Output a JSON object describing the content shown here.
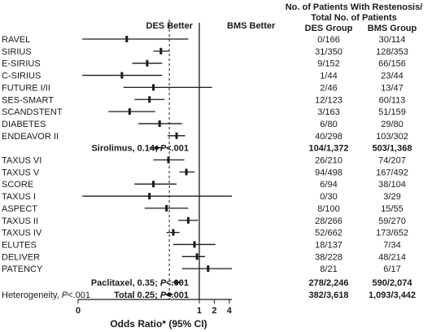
{
  "chart_data": {
    "type": "forest",
    "header": {
      "line1": "No. of Patients With Restenosis/",
      "line2": "Total No. of Patients",
      "des_group": "DES Group",
      "bms_group": "BMS Group"
    },
    "des_better": "DES Better",
    "bms_better": "BMS Better",
    "xlabel": "Odds Ratio* (95% CI)",
    "x_scale": "log",
    "xlim": [
      0.0037,
      4.5
    ],
    "reference_value": 1,
    "pooled_reference_value": 0.25,
    "x_ticks": [
      {
        "value": 0.0037,
        "label": "0"
      },
      {
        "value": 1,
        "label": "1"
      },
      {
        "value": 2,
        "label": "2"
      },
      {
        "value": 4,
        "label": "4"
      }
    ],
    "studies": [
      {
        "name": "RAVEL",
        "des": "0/166",
        "bms": "30/114",
        "or": 0.035,
        "lo": 0.0045,
        "hi": 0.6
      },
      {
        "name": "SIRIUS",
        "des": "31/350",
        "bms": "128/353",
        "or": 0.17,
        "lo": 0.12,
        "hi": 0.25
      },
      {
        "name": "E-SIRIUS",
        "des": "9/152",
        "bms": "66/156",
        "or": 0.09,
        "lo": 0.045,
        "hi": 0.18
      },
      {
        "name": "C-SIRIUS",
        "des": "1/44",
        "bms": "23/44",
        "or": 0.028,
        "lo": 0.0045,
        "hi": 0.18
      },
      {
        "name": "FUTURE I/II",
        "des": "2/46",
        "bms": "13/47",
        "or": 0.12,
        "lo": 0.03,
        "hi": 1.8
      },
      {
        "name": "SES-SMART",
        "des": "12/123",
        "bms": "60/113",
        "or": 0.1,
        "lo": 0.05,
        "hi": 0.2
      },
      {
        "name": "SCANDSTENT",
        "des": "3/163",
        "bms": "51/159",
        "or": 0.04,
        "lo": 0.015,
        "hi": 0.13
      },
      {
        "name": "DIABETES",
        "des": "6/80",
        "bms": "29/80",
        "or": 0.16,
        "lo": 0.06,
        "hi": 0.45
      },
      {
        "name": "ENDEAVOR II",
        "des": "40/298",
        "bms": "103/302",
        "or": 0.35,
        "lo": 0.23,
        "hi": 0.52
      }
    ],
    "sirolimus_pooled": {
      "label": "Sirolimus, 0.14; ",
      "p": "P",
      "p_rest": "<.001",
      "des": "104/1,372",
      "bms": "503/1,368",
      "or": 0.14,
      "lo": 0.1,
      "hi": 0.19
    },
    "taxus_studies": [
      {
        "name": "TAXUS VI",
        "des": "26/210",
        "bms": "74/207",
        "or": 0.24,
        "lo": 0.12,
        "hi": 0.5
      },
      {
        "name": "TAXUS V",
        "des": "94/498",
        "bms": "167/492",
        "or": 0.55,
        "lo": 0.4,
        "hi": 0.8
      },
      {
        "name": "SCORE",
        "des": "6/94",
        "bms": "38/104",
        "or": 0.12,
        "lo": 0.05,
        "hi": 0.35
      },
      {
        "name": "TAXUS I",
        "des": "0/30",
        "bms": "3/29",
        "or": 0.1,
        "lo": 0.0045,
        "hi": 4.5
      },
      {
        "name": "ASPECT",
        "des": "8/100",
        "bms": "15/55",
        "or": 0.22,
        "lo": 0.08,
        "hi": 0.6
      },
      {
        "name": "TAXUS II",
        "des": "28/266",
        "bms": "59/270",
        "or": 0.6,
        "lo": 0.38,
        "hi": 0.95
      },
      {
        "name": "TAXUS IV",
        "des": "52/662",
        "bms": "173/652",
        "or": 0.3,
        "lo": 0.22,
        "hi": 0.4
      },
      {
        "name": "ELUTES",
        "des": "18/137",
        "bms": "7/34",
        "or": 0.8,
        "lo": 0.3,
        "hi": 2.1
      },
      {
        "name": "DELIVER",
        "des": "38/228",
        "bms": "48/214",
        "or": 0.9,
        "lo": 0.45,
        "hi": 1.3
      },
      {
        "name": "PATENCY",
        "des": "8/21",
        "bms": "6/17",
        "or": 1.5,
        "lo": 0.45,
        "hi": 4.5
      }
    ],
    "paclitaxel_pooled": {
      "label": "Paclitaxel, 0.35; ",
      "p": "P",
      "p_rest": "<.001",
      "des": "278/2,246",
      "bms": "590/2,074",
      "or": 0.35,
      "lo": 0.28,
      "hi": 0.45
    },
    "total": {
      "label": "Total 0.25; ",
      "p": "P",
      "p_rest": "<.001",
      "des": "382/3,618",
      "bms": "1,093/3,442",
      "or": 0.25,
      "lo": 0.2,
      "hi": 0.3
    },
    "heterogeneity": {
      "label": "Heterogeneity, ",
      "p": "P",
      "p_rest": "<.001"
    }
  }
}
